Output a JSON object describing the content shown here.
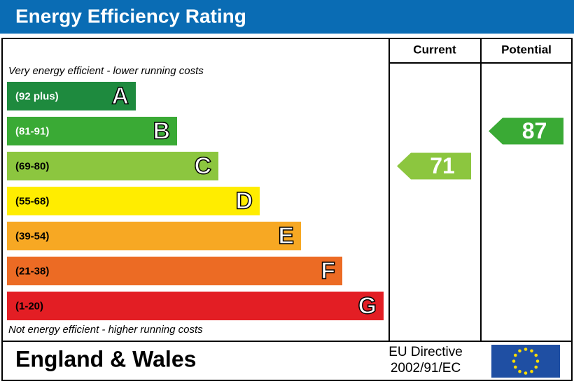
{
  "header": {
    "title": "Energy Efficiency Rating"
  },
  "columns": {
    "current": "Current",
    "potential": "Potential"
  },
  "top_note": "Very energy efficient - lower running costs",
  "bottom_note": "Not energy efficient - higher running costs",
  "bands": [
    {
      "range": "(92 plus)",
      "letter": "A",
      "color": "#1e8a3e"
    },
    {
      "range": "(81-91)",
      "letter": "B",
      "color": "#3aaa35"
    },
    {
      "range": "(69-80)",
      "letter": "C",
      "color": "#8cc63f"
    },
    {
      "range": "(55-68)",
      "letter": "D",
      "color": "#ffed00"
    },
    {
      "range": "(39-54)",
      "letter": "E",
      "color": "#f7a823"
    },
    {
      "range": "(21-38)",
      "letter": "F",
      "color": "#ec6b24"
    },
    {
      "range": "(1-20)",
      "letter": "G",
      "color": "#e31e24"
    }
  ],
  "current": {
    "value": "71"
  },
  "potential": {
    "value": "87"
  },
  "footer": {
    "region": "England & Wales",
    "directive": [
      "EU Directive",
      "2002/91/EC"
    ]
  }
}
